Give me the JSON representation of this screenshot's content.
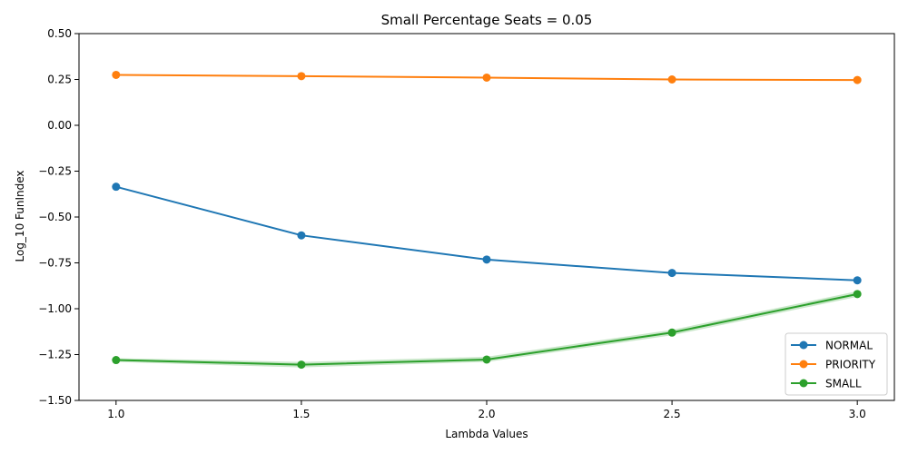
{
  "chart_data": {
    "type": "line",
    "title": "Small Percentage Seats = 0.05",
    "xlabel": "Lambda Values",
    "ylabel": "Log_10 FunIndex",
    "x": [
      1.0,
      1.5,
      2.0,
      2.5,
      3.0
    ],
    "x_tick_labels": [
      "1.0",
      "1.5",
      "2.0",
      "2.5",
      "3.0"
    ],
    "y_ticks": [
      -1.5,
      -1.25,
      -1.0,
      -0.75,
      -0.5,
      -0.25,
      0.0,
      0.25,
      0.5
    ],
    "y_tick_labels": [
      "−1.50",
      "−1.25",
      "−1.00",
      "−0.75",
      "−0.50",
      "−0.25",
      "0.00",
      "0.25",
      "0.50"
    ],
    "xlim": [
      0.9,
      3.1
    ],
    "ylim": [
      -1.5,
      0.5
    ],
    "grid": false,
    "legend_position": "bottom-right",
    "series": [
      {
        "name": "NORMAL",
        "color": "#1f77b4",
        "values": [
          -0.335,
          -0.6,
          -0.732,
          -0.805,
          -0.845
        ]
      },
      {
        "name": "PRIORITY",
        "color": "#ff7f0e",
        "values": [
          0.275,
          0.268,
          0.26,
          0.25,
          0.247
        ]
      },
      {
        "name": "SMALL",
        "color": "#2ca02c",
        "values": [
          -1.28,
          -1.305,
          -1.277,
          -1.13,
          -0.92
        ],
        "band_lower": [
          -1.29,
          -1.32,
          -1.29,
          -1.145,
          -0.935
        ],
        "band_upper": [
          -1.27,
          -1.29,
          -1.262,
          -1.115,
          -0.905
        ]
      }
    ]
  }
}
